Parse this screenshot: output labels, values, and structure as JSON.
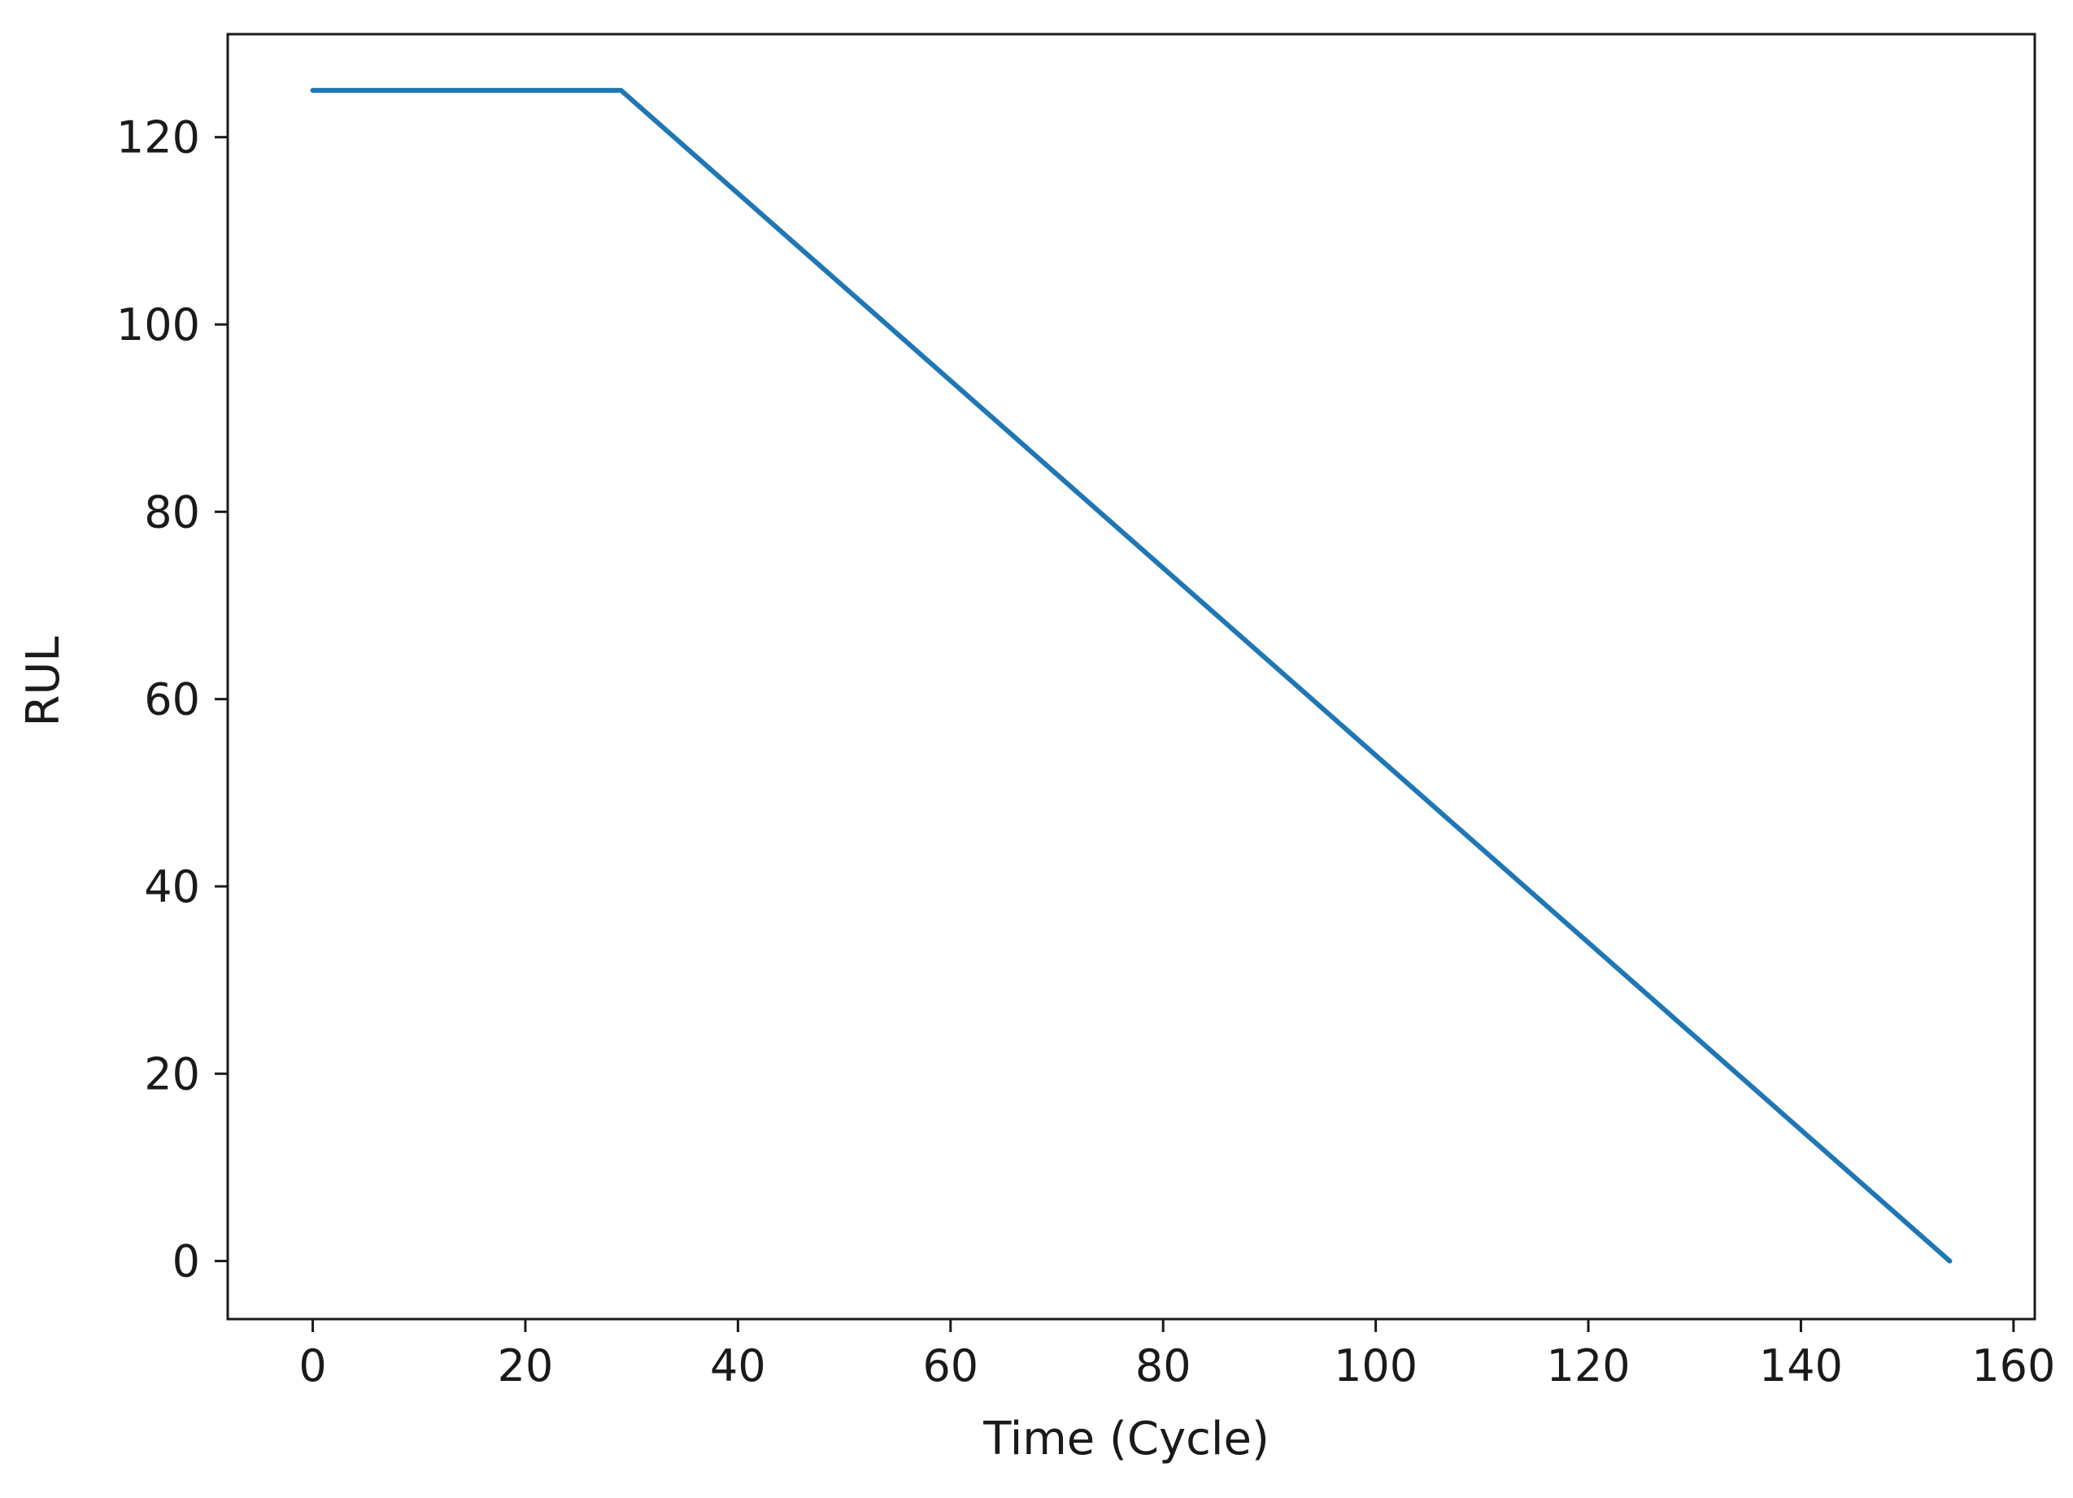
{
  "chart_data": {
    "type": "line",
    "title": "",
    "xlabel": "Time (Cycle)",
    "ylabel": "RUL",
    "xlim": [
      -8,
      162
    ],
    "ylim": [
      -6.2,
      131
    ],
    "xticks": [
      0,
      20,
      40,
      60,
      80,
      100,
      120,
      140,
      160
    ],
    "yticks": [
      0,
      20,
      40,
      60,
      80,
      100,
      120
    ],
    "grid": false,
    "legend": "none",
    "series": [
      {
        "color": "#1f77b4",
        "x": [
          0,
          29,
          154
        ],
        "y": [
          125,
          125,
          0
        ]
      }
    ]
  }
}
